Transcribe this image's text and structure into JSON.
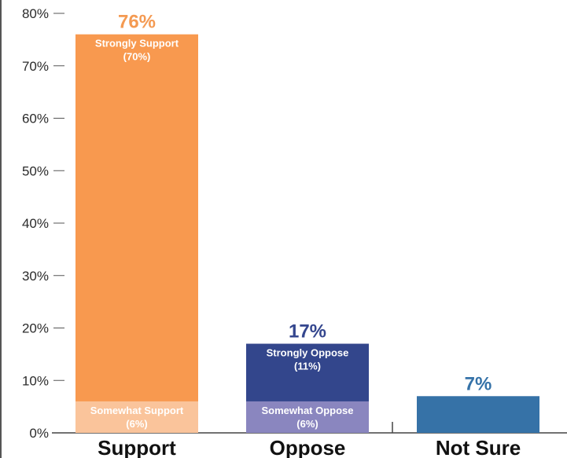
{
  "chart_data": {
    "type": "bar",
    "stacked": true,
    "ylim": [
      0,
      80
    ],
    "yticks": [
      "0%",
      "10%",
      "20%",
      "30%",
      "40%",
      "50%",
      "60%",
      "70%",
      "80%"
    ],
    "ytick_values": [
      0,
      10,
      20,
      30,
      40,
      50,
      60,
      70,
      80
    ],
    "grid": false,
    "categories": [
      {
        "label": "Support",
        "total": 76,
        "total_label": "76%",
        "total_color": "#f49a52",
        "segments": [
          {
            "name": "Somewhat Support",
            "value": 6,
            "value_label": "(6%)",
            "color": "#fac49b"
          },
          {
            "name": "Strongly Support",
            "value": 70,
            "value_label": "(70%)",
            "color": "#f8994f"
          }
        ]
      },
      {
        "label": "Oppose",
        "total": 17,
        "total_label": "17%",
        "total_color": "#34468e",
        "segments": [
          {
            "name": "Somewhat Oppose",
            "value": 6,
            "value_label": "(6%)",
            "color": "#8a86bf"
          },
          {
            "name": "Strongly Oppose",
            "value": 11,
            "value_label": "(11%)",
            "color": "#33468c"
          }
        ]
      },
      {
        "label": "Not Sure",
        "total": 7,
        "total_label": "7%",
        "total_color": "#3572a8",
        "segments": [
          {
            "name": "",
            "value": 7,
            "value_label": "",
            "color": "#3672a7"
          }
        ]
      }
    ]
  }
}
